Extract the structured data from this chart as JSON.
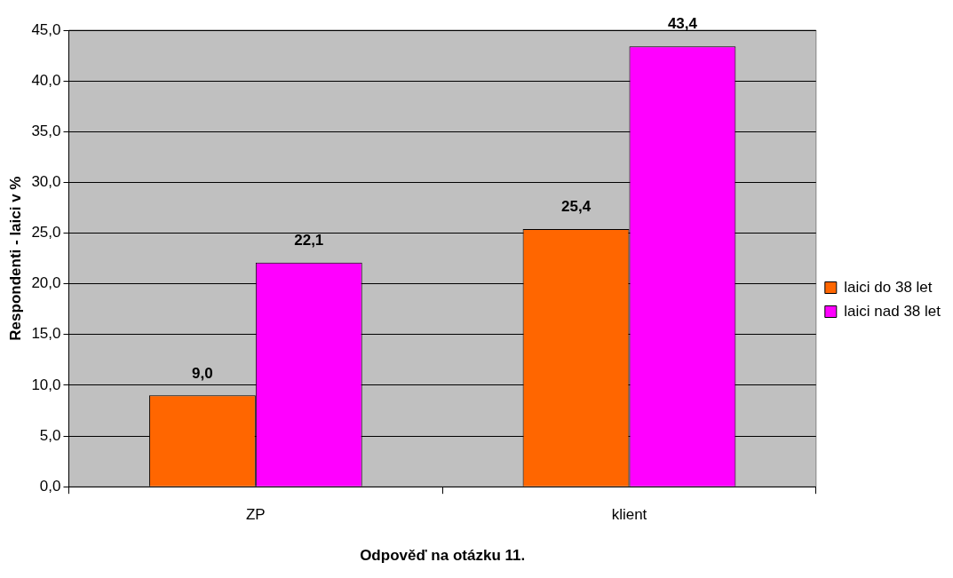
{
  "chart_data": {
    "type": "bar",
    "xlabel": "Odpověď na otázku 11.",
    "ylabel": "Respondenti - laici v %",
    "categories": [
      "ZP",
      "klient"
    ],
    "series": [
      {
        "name": "laici do 38 let",
        "color": "#ff6600",
        "values": [
          9.0,
          25.4
        ],
        "value_labels": [
          "9,0",
          "25,4"
        ]
      },
      {
        "name": "laici nad 38 let",
        "color": "#ff00ff",
        "values": [
          22.1,
          43.4
        ],
        "value_labels": [
          "22,1",
          "43,4"
        ]
      }
    ],
    "ylim": [
      0,
      45
    ],
    "yticks": [
      {
        "value": 0,
        "label": "0,0"
      },
      {
        "value": 5,
        "label": "5,0"
      },
      {
        "value": 10,
        "label": "10,0"
      },
      {
        "value": 15,
        "label": "15,0"
      },
      {
        "value": 20,
        "label": "20,0"
      },
      {
        "value": 25,
        "label": "25,0"
      },
      {
        "value": 30,
        "label": "30,0"
      },
      {
        "value": 35,
        "label": "35,0"
      },
      {
        "value": 40,
        "label": "40,0"
      },
      {
        "value": 45,
        "label": "45,0"
      }
    ],
    "grid": "y",
    "legend": "right"
  }
}
